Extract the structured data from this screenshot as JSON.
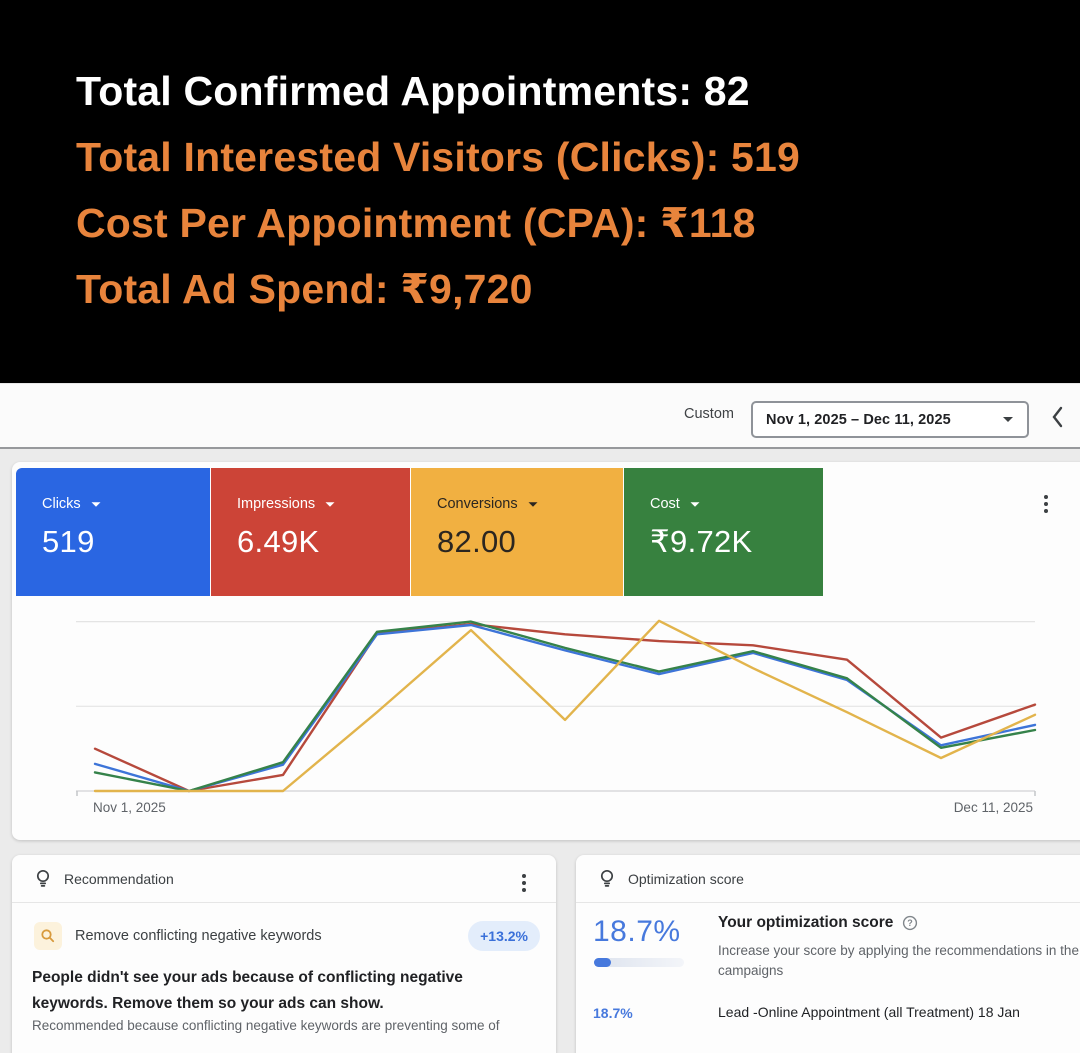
{
  "hero": {
    "lines": [
      {
        "text": "Total Confirmed Appointments: 82",
        "color": "#ffffff"
      },
      {
        "text": "Total Interested Visitors (Clicks): 519",
        "color": "#e8843c"
      },
      {
        "text": "Cost Per Appointment (CPA): ₹118",
        "color": "#e8843c"
      },
      {
        "text": "Total Ad Spend: ₹9,720",
        "color": "#e8843c"
      }
    ]
  },
  "toolbar": {
    "range_type_label": "Custom",
    "date_range_value": "Nov 1, 2025 – Dec 11, 2025"
  },
  "scorecards": [
    {
      "label": "Clicks",
      "value": "519",
      "bg": "#2a66e2",
      "fg": "#ffffff"
    },
    {
      "label": "Impressions",
      "value": "6.49K",
      "bg": "#cc4437",
      "fg": "#ffffff"
    },
    {
      "label": "Conversions",
      "value": "82.00",
      "bg": "#f1b041",
      "fg": "#2b2620"
    },
    {
      "label": "Cost",
      "value": "₹9.72K",
      "bg": "#37813f",
      "fg": "#ffffff"
    }
  ],
  "chart_data": {
    "type": "line",
    "title": "",
    "xlabel": "",
    "ylabel": "",
    "x_start_label": "Nov 1, 2025",
    "x_end_label": "Dec 11, 2025",
    "x_points": 11,
    "ylim": [
      0,
      2.15
    ],
    "gridline_values": [
      1,
      2
    ],
    "legend": "none",
    "series": [
      {
        "name": "Clicks",
        "color": "#3d74d8",
        "values": [
          0.32,
          0.0,
          0.31,
          1.85,
          1.96,
          1.66,
          1.38,
          1.63,
          1.31,
          0.54,
          0.78
        ]
      },
      {
        "name": "Impressions",
        "color": "#b6493c",
        "values": [
          0.5,
          0.0,
          0.19,
          1.86,
          1.97,
          1.85,
          1.77,
          1.72,
          1.55,
          0.63,
          1.02
        ]
      },
      {
        "name": "Conversions",
        "color": "#e2b44c",
        "values": [
          0.0,
          0.0,
          0.0,
          0.93,
          1.9,
          0.84,
          2.01,
          1.45,
          0.93,
          0.39,
          0.9
        ]
      },
      {
        "name": "Cost",
        "color": "#35824a",
        "values": [
          0.22,
          0.0,
          0.34,
          1.88,
          2.0,
          1.69,
          1.41,
          1.65,
          1.33,
          0.51,
          0.72
        ]
      }
    ]
  },
  "recommendation_card": {
    "header": "Recommendation",
    "item": {
      "title": "Remove conflicting negative keywords",
      "uplift_badge": "+13.2%",
      "badge_bg": "#e3edfb",
      "badge_fg": "#3a70d9",
      "headline_lines": [
        "People didn't see your ads because of conflicting negative",
        "keywords. Remove them so your ads can show."
      ],
      "reason": "Recommended because conflicting negative keywords are preventing some of"
    }
  },
  "optimization_card": {
    "header": "Optimization score",
    "score": "18.7%",
    "score_percent": 18.7,
    "accent": "#4779dd",
    "title": "Your optimization score",
    "description_lines": [
      "Increase your score by applying the recommendations in the",
      "campaigns"
    ],
    "campaign_row": {
      "score": "18.7%",
      "name": "Lead -Online Appointment (all Treatment) 18 Jan"
    }
  }
}
